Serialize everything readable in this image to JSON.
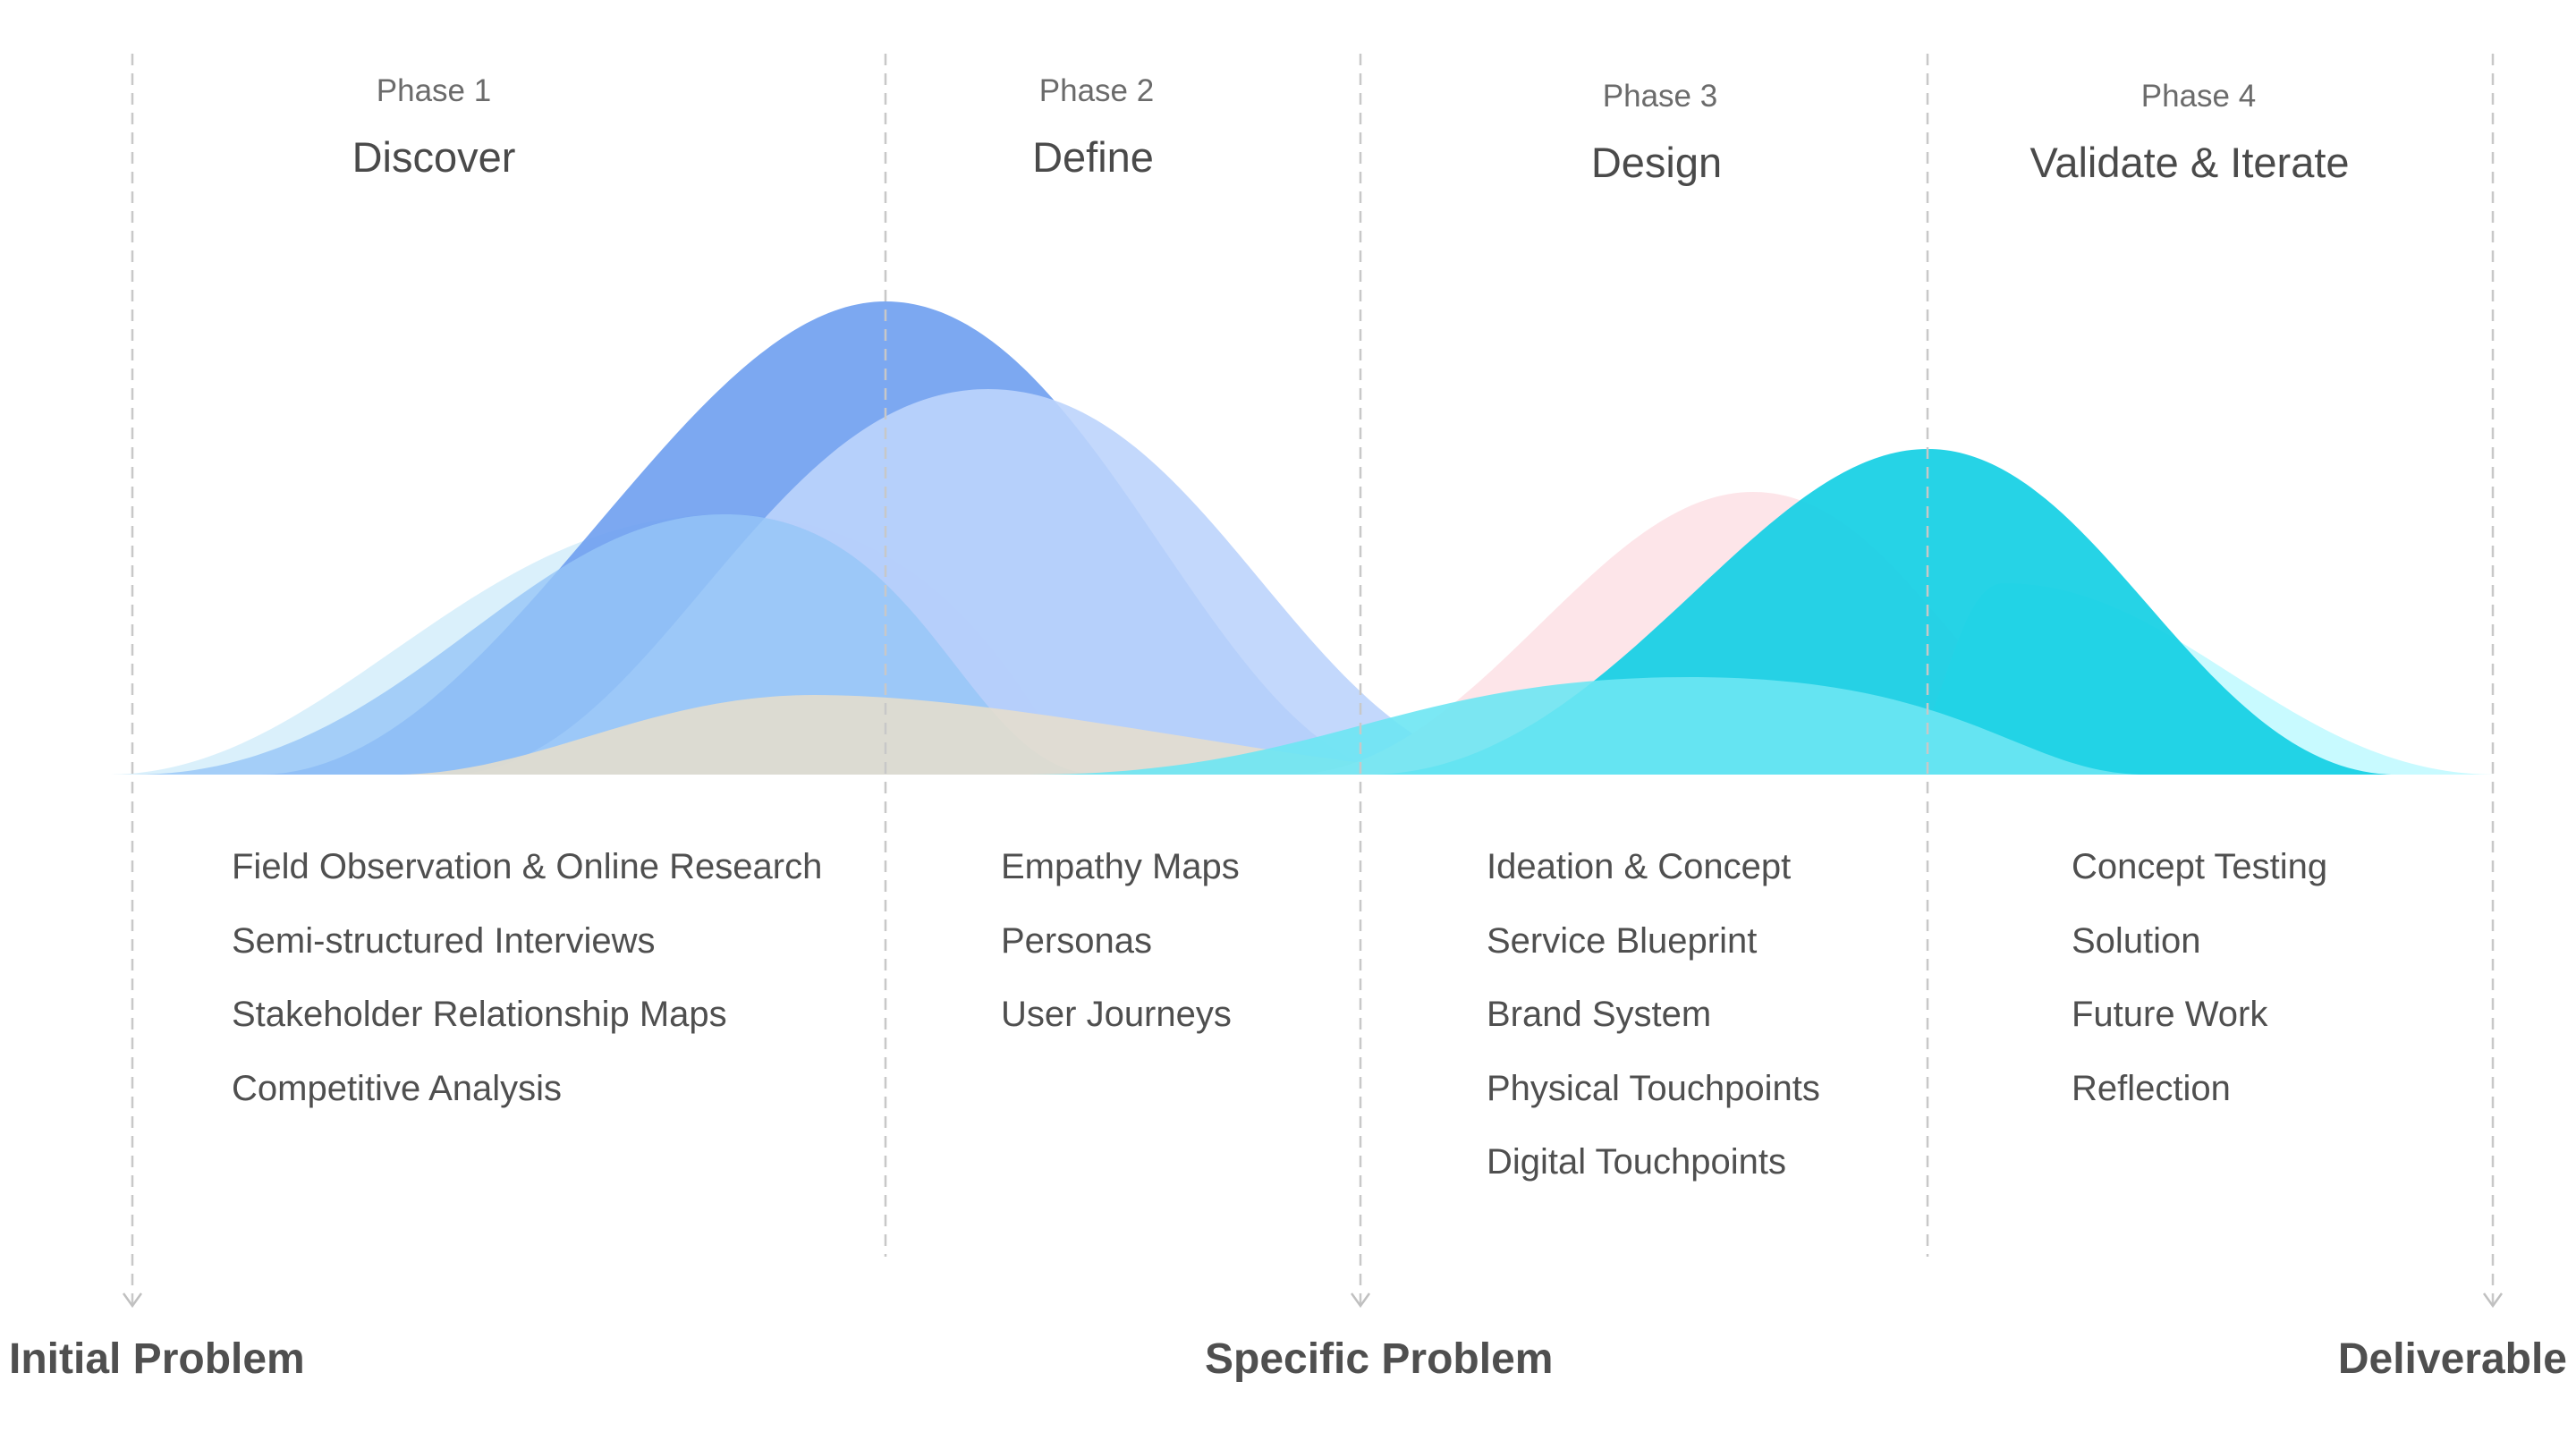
{
  "phases": [
    {
      "number_label": "Phase 1",
      "name": "Discover",
      "activities": [
        "Field Observation & Online Research",
        "Semi-structured Interviews",
        "Stakeholder Relationship Maps",
        "Competitive Analysis"
      ]
    },
    {
      "number_label": "Phase 2",
      "name": "Define",
      "activities": [
        "Empathy Maps",
        "Personas",
        "User Journeys"
      ]
    },
    {
      "number_label": "Phase 3",
      "name": "Design",
      "activities": [
        "Ideation & Concept",
        "Service Blueprint",
        "Brand System",
        "Physical Touchpoints",
        "Digital Touchpoints"
      ]
    },
    {
      "number_label": "Phase 4",
      "name": "Validate & Iterate",
      "activities": [
        "Concept Testing",
        "Solution",
        "Future Work",
        "Reflection"
      ]
    }
  ],
  "milestones": {
    "start": "Initial Problem",
    "middle": "Specific Problem",
    "end": "Deliverable"
  },
  "colors": {
    "divider_line": "#c8c8c8",
    "bell_light_sky": "#d8effb",
    "bell_royal_blue": "#6e9ef0",
    "bell_sky_blue": "#96c6f7",
    "bell_periwinkle": "#bcd4fc",
    "bell_sand": "#e8decb",
    "bell_pink": "#fde4e8",
    "bell_teal": "#14cfe4",
    "bell_aqua": "#6de6f3",
    "bell_pale_cyan": "#c5faff"
  }
}
